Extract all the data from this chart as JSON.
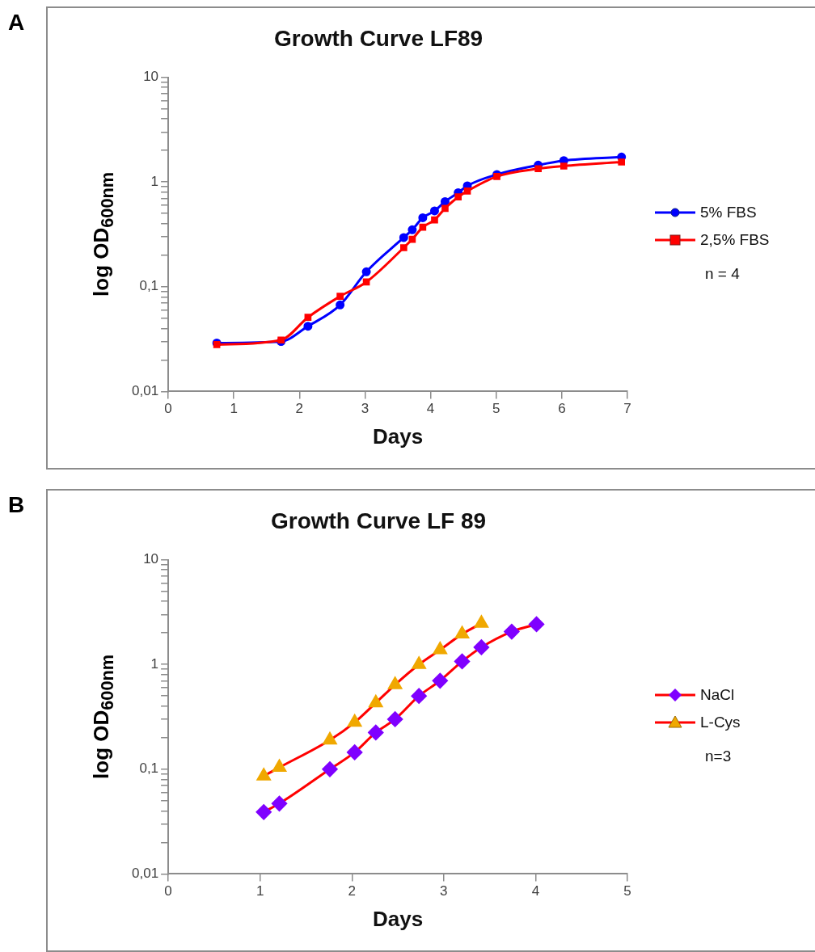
{
  "chart_data": [
    {
      "type": "line",
      "title": "Growth Curve LF89",
      "xlabel": "Days",
      "ylabel": "log OD$_{600nm}$",
      "annotations": [
        "A",
        "n = 4"
      ],
      "log": "y",
      "legend": "right",
      "grid": false,
      "xlim": [
        0,
        7
      ],
      "xticks": [
        0,
        1,
        2,
        3,
        4,
        5,
        6,
        7
      ],
      "ylim": [
        0.01,
        10
      ],
      "yticks": [
        {
          "value": 0.01,
          "label": "0,01"
        },
        {
          "value": 0.02,
          "label": null
        },
        {
          "value": 0.03,
          "label": null
        },
        {
          "value": 0.04,
          "label": null
        },
        {
          "value": 0.05,
          "label": null
        },
        {
          "value": 0.06,
          "label": null
        },
        {
          "value": 0.07,
          "label": null
        },
        {
          "value": 0.08,
          "label": null
        },
        {
          "value": 0.09,
          "label": null
        },
        {
          "value": 0.1,
          "label": "0,1"
        },
        {
          "value": 0.2,
          "label": null
        },
        {
          "value": 0.3,
          "label": null
        },
        {
          "value": 0.4,
          "label": null
        },
        {
          "value": 0.5,
          "label": null
        },
        {
          "value": 0.6,
          "label": null
        },
        {
          "value": 0.7,
          "label": null
        },
        {
          "value": 0.8,
          "label": null
        },
        {
          "value": 0.9,
          "label": null
        },
        {
          "value": 1,
          "label": "1"
        },
        {
          "value": 2,
          "label": null
        },
        {
          "value": 3,
          "label": null
        },
        {
          "value": 4,
          "label": null
        },
        {
          "value": 5,
          "label": null
        },
        {
          "value": 6,
          "label": null
        },
        {
          "value": 7,
          "label": null
        },
        {
          "value": 8,
          "label": null
        },
        {
          "value": 9,
          "label": null
        },
        {
          "value": 10,
          "label": "10"
        }
      ],
      "x": [
        0.74,
        1.72,
        2.13,
        2.62,
        3.02,
        3.59,
        3.72,
        3.88,
        4.06,
        4.22,
        4.42,
        4.56,
        5.01,
        5.64,
        6.03,
        6.91
      ],
      "series": [
        {
          "name": "5% FBS",
          "color": "#0000ff",
          "marker": "circle",
          "values": [
            0.029,
            0.03,
            0.042,
            0.067,
            0.139,
            0.295,
            0.35,
            0.456,
            0.53,
            0.65,
            0.79,
            0.92,
            1.18,
            1.45,
            1.6,
            1.73
          ]
        },
        {
          "name": "2,5% FBS",
          "color": "#ff0000",
          "marker": "square",
          "values": [
            0.028,
            0.031,
            0.051,
            0.081,
            0.111,
            0.236,
            0.284,
            0.37,
            0.435,
            0.56,
            0.72,
            0.82,
            1.13,
            1.34,
            1.42,
            1.55
          ]
        }
      ]
    },
    {
      "type": "line",
      "title": "Growth Curve LF 89",
      "xlabel": "Days",
      "ylabel": "log OD$_{600nm}$",
      "annotations": [
        "B",
        "n=3"
      ],
      "log": "y",
      "legend": "right",
      "grid": false,
      "xlim": [
        0,
        5
      ],
      "xticks": [
        0,
        1,
        2,
        3,
        4,
        5
      ],
      "ylim": [
        0.01,
        10
      ],
      "yticks": [
        {
          "value": 0.01,
          "label": "0,01"
        },
        {
          "value": 0.02,
          "label": null
        },
        {
          "value": 0.03,
          "label": null
        },
        {
          "value": 0.04,
          "label": null
        },
        {
          "value": 0.05,
          "label": null
        },
        {
          "value": 0.06,
          "label": null
        },
        {
          "value": 0.07,
          "label": null
        },
        {
          "value": 0.08,
          "label": null
        },
        {
          "value": 0.09,
          "label": null
        },
        {
          "value": 0.1,
          "label": "0,1"
        },
        {
          "value": 0.2,
          "label": null
        },
        {
          "value": 0.3,
          "label": null
        },
        {
          "value": 0.4,
          "label": null
        },
        {
          "value": 0.5,
          "label": null
        },
        {
          "value": 0.6,
          "label": null
        },
        {
          "value": 0.7,
          "label": null
        },
        {
          "value": 0.8,
          "label": null
        },
        {
          "value": 0.9,
          "label": null
        },
        {
          "value": 1,
          "label": "1"
        },
        {
          "value": 2,
          "label": null
        },
        {
          "value": 3,
          "label": null
        },
        {
          "value": 4,
          "label": null
        },
        {
          "value": 5,
          "label": null
        },
        {
          "value": 6,
          "label": null
        },
        {
          "value": 7,
          "label": null
        },
        {
          "value": 8,
          "label": null
        },
        {
          "value": 9,
          "label": null
        },
        {
          "value": 10,
          "label": "10"
        }
      ],
      "series": [
        {
          "name": "NaCl",
          "color": "#ff0000",
          "colors": [
            "#7f00ff",
            "#7f00ff",
            "#7f00ff",
            "#7f00ff",
            "#7f00ff",
            "#7f00ff",
            "#7f00ff",
            "#7f00ff",
            "#7f00ff",
            "#7f00ff",
            "#7f00ff",
            "#7f00ff"
          ],
          "marker": "diamond",
          "x": [
            1.04,
            1.21,
            1.76,
            2.03,
            2.26,
            2.47,
            2.73,
            2.96,
            3.2,
            3.41,
            3.74,
            4.01
          ],
          "values": [
            0.039,
            0.047,
            0.1,
            0.145,
            0.224,
            0.3,
            0.5,
            0.7,
            1.07,
            1.46,
            2.06,
            2.42
          ]
        },
        {
          "name": "L-Cys",
          "color": "#ff0000",
          "colors": [
            "#f0a800",
            "#f0a800",
            "#f0a800",
            "#f0a800",
            "#f0a800",
            "#f0a800",
            "#f0a800",
            "#f0a800",
            "#f0a800",
            "#f0a800"
          ],
          "marker": "triangle",
          "x": [
            1.04,
            1.21,
            1.76,
            2.03,
            2.26,
            2.47,
            2.73,
            2.96,
            3.2,
            3.41
          ],
          "values": [
            0.086,
            0.104,
            0.19,
            0.28,
            0.43,
            0.64,
            1.0,
            1.38,
            1.95,
            2.47
          ]
        }
      ]
    }
  ]
}
